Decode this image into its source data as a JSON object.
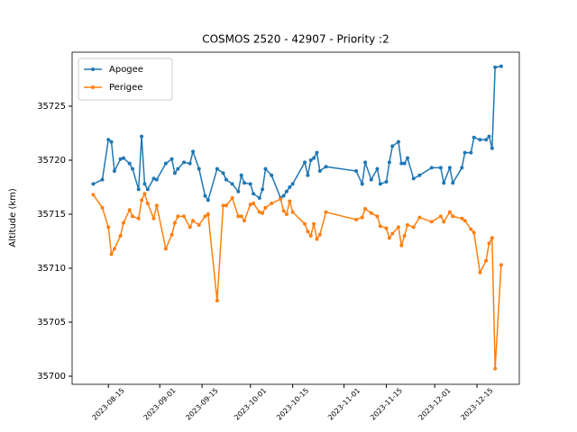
{
  "chart_data": {
    "type": "line",
    "title": "COSMOS 2520 - 42907 - Priority :2",
    "ylabel": "Altitude (km)",
    "x": [
      "2023-08-10",
      "2023-08-13",
      "2023-08-15",
      "2023-08-16",
      "2023-08-17",
      "2023-08-19",
      "2023-08-20",
      "2023-08-22",
      "2023-08-23",
      "2023-08-25",
      "2023-08-26",
      "2023-08-27",
      "2023-08-28",
      "2023-08-30",
      "2023-08-31",
      "2023-09-03",
      "2023-09-05",
      "2023-09-06",
      "2023-09-07",
      "2023-09-09",
      "2023-09-11",
      "2023-09-12",
      "2023-09-14",
      "2023-09-16",
      "2023-09-17",
      "2023-09-20",
      "2023-09-22",
      "2023-09-23",
      "2023-09-25",
      "2023-09-27",
      "2023-09-28",
      "2023-09-29",
      "2023-10-01",
      "2023-10-02",
      "2023-10-04",
      "2023-10-05",
      "2023-10-06",
      "2023-10-08",
      "2023-10-11",
      "2023-10-12",
      "2023-10-13",
      "2023-10-14",
      "2023-10-15",
      "2023-10-19",
      "2023-10-20",
      "2023-10-21",
      "2023-10-22",
      "2023-10-23",
      "2023-10-24",
      "2023-10-26",
      "2023-11-05",
      "2023-11-07",
      "2023-11-08",
      "2023-11-10",
      "2023-11-12",
      "2023-11-13",
      "2023-11-15",
      "2023-11-16",
      "2023-11-17",
      "2023-11-19",
      "2023-11-20",
      "2023-11-21",
      "2023-11-22",
      "2023-11-24",
      "2023-11-26",
      "2023-11-30",
      "2023-12-03",
      "2023-12-04",
      "2023-12-06",
      "2023-12-07",
      "2023-12-10",
      "2023-12-11",
      "2023-12-13",
      "2023-12-14",
      "2023-12-16",
      "2023-12-18",
      "2023-12-19",
      "2023-12-20",
      "2023-12-21",
      "2023-12-23"
    ],
    "series": [
      {
        "name": "Apogee",
        "color": "#1f77b4",
        "values": [
          35717.8,
          35718.2,
          35721.9,
          35721.7,
          35719.0,
          35720.1,
          35720.2,
          35719.7,
          35719.2,
          35717.3,
          35722.2,
          35717.8,
          35717.3,
          35718.3,
          35718.2,
          35719.7,
          35720.1,
          35718.8,
          35719.2,
          35719.8,
          35719.7,
          35720.8,
          35719.2,
          35716.7,
          35716.3,
          35719.2,
          35718.8,
          35718.2,
          35717.8,
          35717.1,
          35718.6,
          35717.9,
          35717.8,
          35716.9,
          35716.5,
          35717.3,
          35719.2,
          35718.6,
          35716.5,
          35716.7,
          35717.1,
          35717.5,
          35717.8,
          35719.8,
          35718.6,
          35720.0,
          35720.2,
          35720.7,
          35719.0,
          35719.4,
          35719.0,
          35717.8,
          35719.8,
          35718.2,
          35719.2,
          35717.8,
          35718.0,
          35719.8,
          35721.3,
          35721.7,
          35719.7,
          35719.7,
          35720.2,
          35718.3,
          35718.6,
          35719.3,
          35719.3,
          35717.9,
          35719.3,
          35717.9,
          35719.3,
          35720.7,
          35720.7,
          35722.1,
          35721.9,
          35721.9,
          35722.2,
          35721.1,
          35728.6,
          35728.7
        ]
      },
      {
        "name": "Perigee",
        "color": "#ff7f0e",
        "values": [
          35716.8,
          35715.6,
          35713.8,
          35711.3,
          35711.8,
          35713.0,
          35714.2,
          35715.4,
          35714.8,
          35714.6,
          35716.3,
          35716.9,
          35716.0,
          35714.6,
          35715.8,
          35711.8,
          35713.1,
          35714.2,
          35714.8,
          35714.8,
          35713.8,
          35714.4,
          35714.0,
          35714.8,
          35715.0,
          35707.0,
          35715.8,
          35715.8,
          35716.5,
          35714.8,
          35714.8,
          35714.4,
          35715.9,
          35716.0,
          35715.2,
          35715.1,
          35715.6,
          35716.0,
          35716.4,
          35715.3,
          35715.0,
          35716.2,
          35715.2,
          35714.1,
          35713.4,
          35713.0,
          35714.1,
          35712.7,
          35713.1,
          35715.2,
          35714.5,
          35714.7,
          35715.5,
          35715.1,
          35714.8,
          35713.9,
          35713.7,
          35712.8,
          35713.2,
          35713.8,
          35712.1,
          35713.0,
          35714.0,
          35713.8,
          35714.7,
          35714.3,
          35714.8,
          35714.3,
          35715.2,
          35714.8,
          35714.6,
          35714.4,
          35713.6,
          35713.3,
          35709.6,
          35710.7,
          35712.3,
          35712.8,
          35700.7,
          35710.3
        ]
      }
    ],
    "xlim": [
      "2023-08-03",
      "2023-12-29"
    ],
    "xticks": [
      "2023-08-15",
      "2023-09-01",
      "2023-09-15",
      "2023-10-01",
      "2023-10-15",
      "2023-11-01",
      "2023-11-15",
      "2023-12-01",
      "2023-12-15"
    ],
    "ylim": [
      35699.25,
      35730
    ],
    "yticks": [
      35700,
      35705,
      35710,
      35715,
      35720,
      35725
    ],
    "legend": "upper left"
  }
}
